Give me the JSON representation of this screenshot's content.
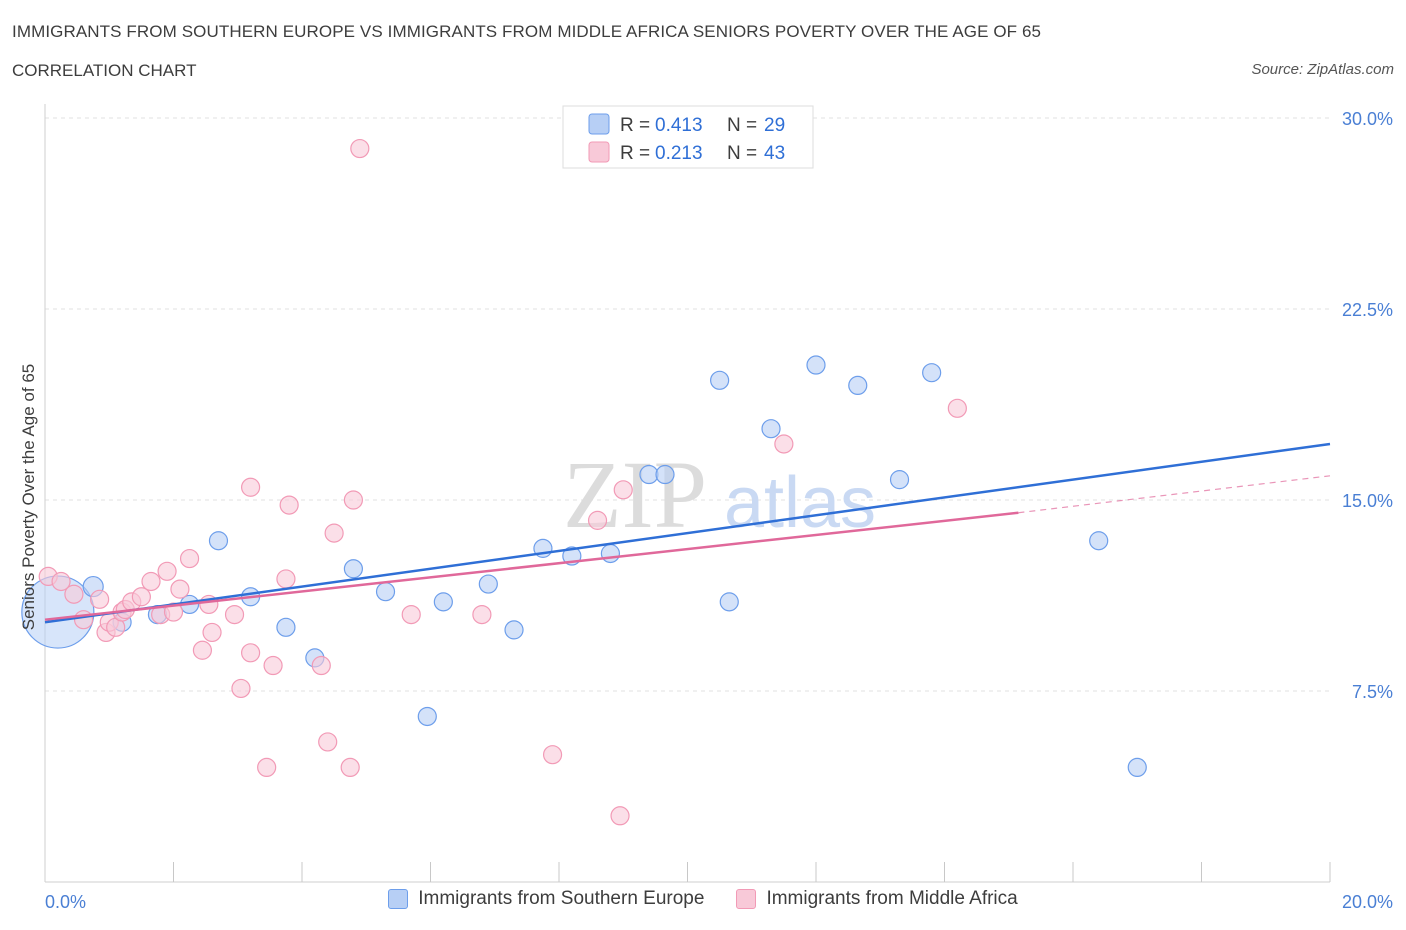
{
  "header": {
    "title": "IMMIGRANTS FROM SOUTHERN EUROPE VS IMMIGRANTS FROM MIDDLE AFRICA SENIORS POVERTY OVER THE AGE OF 65",
    "subtitle": "CORRELATION CHART",
    "source": "Source: ZipAtlas.com"
  },
  "watermark": {
    "zip": "ZIP",
    "atlas": "atlas"
  },
  "stats_legend": [
    {
      "r_label": "R = ",
      "r_value": "0.413",
      "n_label": "N = ",
      "n_value": "29"
    },
    {
      "r_label": "R = ",
      "r_value": "0.213",
      "n_label": "N = ",
      "n_value": "43"
    }
  ],
  "chart_data": {
    "type": "scatter",
    "xlabel": "",
    "ylabel": "Seniors Poverty Over the Age of 65",
    "xlim": [
      0,
      20
    ],
    "ylim": [
      0,
      30
    ],
    "x_tick_labels": [
      "0.0%",
      "20.0%"
    ],
    "y_ticks": [
      7.5,
      15.0,
      22.5,
      30.0
    ],
    "y_tick_labels": [
      "7.5%",
      "15.0%",
      "22.5%",
      "30.0%"
    ],
    "grid": true,
    "legend_position": "top-center",
    "series": [
      {
        "name": "Immigrants from Southern Europe",
        "color": "#6d9eeb",
        "fill": "#b7cff5",
        "line_color": "#2f6fd6",
        "trend": {
          "x": [
            0,
            20
          ],
          "y": [
            10.2,
            17.2
          ]
        },
        "points": [
          [
            0.2,
            10.6
          ],
          [
            0.75,
            11.6
          ],
          [
            1.2,
            10.2
          ],
          [
            1.75,
            10.5
          ],
          [
            2.25,
            10.9
          ],
          [
            2.7,
            13.4
          ],
          [
            3.2,
            11.2
          ],
          [
            3.75,
            10.0
          ],
          [
            4.2,
            8.8
          ],
          [
            4.8,
            12.3
          ],
          [
            5.3,
            11.4
          ],
          [
            5.95,
            6.5
          ],
          [
            6.2,
            11.0
          ],
          [
            6.9,
            11.7
          ],
          [
            7.3,
            9.9
          ],
          [
            7.75,
            13.1
          ],
          [
            8.2,
            12.8
          ],
          [
            8.8,
            12.9
          ],
          [
            9.4,
            16.0
          ],
          [
            9.65,
            16.0
          ],
          [
            10.5,
            19.7
          ],
          [
            10.65,
            11.0
          ],
          [
            11.3,
            17.8
          ],
          [
            12.0,
            20.3
          ],
          [
            12.65,
            19.5
          ],
          [
            13.3,
            15.8
          ],
          [
            13.8,
            20.0
          ],
          [
            16.4,
            13.4
          ],
          [
            17.0,
            4.5
          ]
        ],
        "sizes": [
          36,
          10,
          9,
          9,
          9,
          9,
          9,
          9,
          9,
          9,
          9,
          9,
          9,
          9,
          9,
          9,
          9,
          9,
          9,
          9,
          9,
          9,
          9,
          9,
          9,
          9,
          9,
          9,
          9
        ]
      },
      {
        "name": "Immigrants from Middle Africa",
        "color": "#f29ab6",
        "fill": "#f8c9d8",
        "line_color": "#e0689a",
        "trend": {
          "x": [
            0,
            15.15
          ],
          "y": [
            10.3,
            14.5
          ]
        },
        "trend_dashed": {
          "x": [
            15.15,
            20
          ],
          "y": [
            14.5,
            15.95
          ]
        },
        "points": [
          [
            0.05,
            12.0
          ],
          [
            0.25,
            11.8
          ],
          [
            0.45,
            11.3
          ],
          [
            0.6,
            10.3
          ],
          [
            0.85,
            11.1
          ],
          [
            0.95,
            9.8
          ],
          [
            1.0,
            10.2
          ],
          [
            1.1,
            10.0
          ],
          [
            1.2,
            10.6
          ],
          [
            1.25,
            10.7
          ],
          [
            1.35,
            11.0
          ],
          [
            1.5,
            11.2
          ],
          [
            1.65,
            11.8
          ],
          [
            1.8,
            10.5
          ],
          [
            1.9,
            12.2
          ],
          [
            2.0,
            10.6
          ],
          [
            2.1,
            11.5
          ],
          [
            2.25,
            12.7
          ],
          [
            2.45,
            9.1
          ],
          [
            2.55,
            10.9
          ],
          [
            2.6,
            9.8
          ],
          [
            2.95,
            10.5
          ],
          [
            3.05,
            7.6
          ],
          [
            3.2,
            15.5
          ],
          [
            3.2,
            9.0
          ],
          [
            3.45,
            4.5
          ],
          [
            3.55,
            8.5
          ],
          [
            3.75,
            11.9
          ],
          [
            3.8,
            14.8
          ],
          [
            4.3,
            8.5
          ],
          [
            4.4,
            5.5
          ],
          [
            4.5,
            13.7
          ],
          [
            4.75,
            4.5
          ],
          [
            4.8,
            15.0
          ],
          [
            4.9,
            28.8
          ],
          [
            5.7,
            10.5
          ],
          [
            6.8,
            10.5
          ],
          [
            7.9,
            5.0
          ],
          [
            8.6,
            14.2
          ],
          [
            8.95,
            2.6
          ],
          [
            9.0,
            15.4
          ],
          [
            11.5,
            17.2
          ],
          [
            14.2,
            18.6
          ]
        ]
      }
    ]
  }
}
